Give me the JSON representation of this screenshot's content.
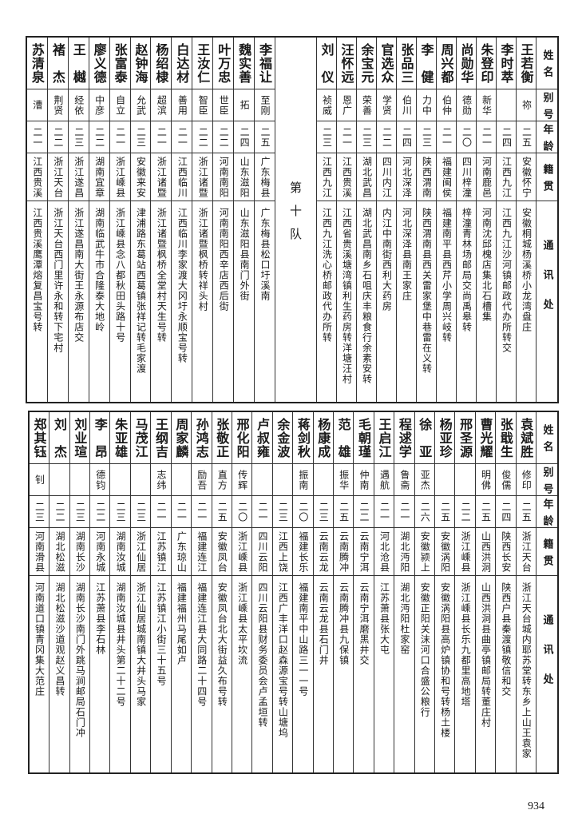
{
  "headers": [
    "姓名",
    "别号",
    "年龄",
    "籍贯",
    "通讯处"
  ],
  "top_table": {
    "right_group": [
      [
        "王若衡",
        "祢",
        "二五",
        "安徽怀宁",
        "安徽桐城杨溪桥小龙湾盘庄"
      ],
      [
        "李时萃",
        "",
        "二四",
        "江西九江",
        "江西九江沙河镇邮政代办所转交"
      ],
      [
        "朱登印",
        "新华",
        "二一",
        "河南鹿邑",
        "河南沈邱槐店集北石槽集"
      ],
      [
        "尚勋华",
        "德勋",
        "二〇",
        "四川梓潼",
        "梓潼青林场邮局交尚禹皋转"
      ],
      [
        "周兴都",
        "伯仲",
        "二一",
        "福建闽侯",
        "福建南平县西芹小学周兴岐转"
      ],
      [
        "李健",
        "力中",
        "二三",
        "陕西渭南",
        "陕西渭南县西关雷家堡中巷雷在义转"
      ],
      [
        "张品三",
        "伯川",
        "二四",
        "河北深泽",
        "河北深泽县南王家庄"
      ],
      [
        "官选众",
        "学贤",
        "二二",
        "四川内江",
        "内江中南街西利大药房"
      ],
      [
        "余宝元",
        "荣善",
        "二三",
        "湖北武昌",
        "湖北武昌南乡石咀庆丰粮食行余素安转"
      ],
      [
        "汪怀远",
        "恩广",
        "二一",
        "江西贵溪",
        "江西省贵溪塘湾镇利生药房转洋塘汪村"
      ],
      [
        "刘仪",
        "祯威",
        "二三",
        "江西九江",
        "江西九江洗心桥邮政代办所转"
      ]
    ],
    "divider": "第十队",
    "left_group": [
      [
        "李福让",
        "至刚",
        "二五",
        "广东梅县",
        "广东梅县松口圩溪南"
      ],
      [
        "魏实善",
        "拓",
        "二四",
        "山东滋阳",
        "山东滋阳县南门外街"
      ],
      [
        "叶万忠",
        "世臣",
        "二二",
        "河南南阳",
        "河南南阳西辛店西后街"
      ],
      [
        "王汝仁",
        "智臣",
        "二二",
        "浙江诸暨",
        "浙江诸暨枫桥转祥头村"
      ],
      [
        "白达材",
        "善用",
        "二一",
        "江西临川",
        "江西临川李家渡大冈圩永顺宝号转"
      ],
      [
        "杨绍棣",
        "超滨",
        "二一",
        "浙江诸暨",
        "浙江诸暨枫桥全堂村天生号转"
      ],
      [
        "赵钟海",
        "允武",
        "二三",
        "安徽来安",
        "津浦路东葛站西葛镇张祥记转毛家渡"
      ],
      [
        "张富泰",
        "自立",
        "二一",
        "浙江嵊县",
        "浙江嵊县念八都秋田头路十号"
      ],
      [
        "廖义德",
        "中彦",
        "二二",
        "湖南宜章",
        "湖南临武牛市合隆泰大地岭"
      ],
      [
        "王樾",
        "经依",
        "二三",
        "浙江遂昌",
        "浙江遂昌南大街王永源布店交"
      ],
      [
        "褚杰",
        "荆贤",
        "二二",
        "浙江天台",
        "浙江天台西门里许永和转下宅村"
      ],
      [
        "苏清泉",
        "漕",
        "二一",
        "江西贵溪",
        "江西贵溪鹰潭熔复昌宝号转"
      ]
    ]
  },
  "bottom_table": {
    "rows": [
      [
        "袁斌胜",
        "修印",
        "二五",
        "浙江天台",
        "浙江天台城内耶苏堂转东乡上山王袁家"
      ],
      [
        "张戢生",
        "俊儒",
        "二四",
        "陕西长安",
        "陕西户县秦渡镇敬信和交"
      ],
      [
        "曹光耀",
        "明佛",
        "二五",
        "山西洪洞",
        "山西洪洞县曲亭镇邮局转董庄村"
      ],
      [
        "邢圣源",
        "",
        "二二",
        "浙江嵊县",
        "浙江嵊县长乐九都里高地塔"
      ],
      [
        "杨亚珍",
        "",
        "二五",
        "安徽涡阳",
        "安徽涡阳县高炉镇协和号转杨土楼"
      ],
      [
        "徐亚",
        "亚杰",
        "二六",
        "安徽颍上",
        "安徽正阳关沫河口合盛公粮行"
      ],
      [
        "程逑学",
        "鲁斋",
        "二一",
        "湖北沔阳",
        "湖北沔阳杜家窑"
      ],
      [
        "王启江",
        "遇航",
        "二一",
        "河北沧县",
        "江苏萧县张大屯"
      ],
      [
        "毛朝瑾",
        "仲南",
        "二二",
        "云南宁洱",
        "云南宁洱磨黑井交"
      ],
      [
        "范雄",
        "振华",
        "二五",
        "云南腾冲",
        "云南腾冲县九保镇"
      ],
      [
        "杨康成",
        "",
        "二三",
        "云南云龙",
        "云南云龙县石门井"
      ],
      [
        "蒋剑秋",
        "振南",
        "二〇",
        "福建长乐",
        "福建南平中山路三一一号"
      ],
      [
        "余金波",
        "",
        "二三",
        "江西上饶",
        "江西广丰洋口赵森源宝号转山塘坞"
      ],
      [
        "卢叔雍",
        "",
        "二一",
        "四川云阳",
        "四川云阳县财务委员会卢孟垣转"
      ],
      [
        "邢化阳",
        "传辉",
        "二〇",
        "浙江嵊县",
        "浙江嵊县太平坎流"
      ],
      [
        "张敬正",
        "直方",
        "二五",
        "安徽凤台",
        "安徽凤台北大街益久布号转"
      ],
      [
        "孙鸿志",
        "励吾",
        "二一",
        "福建连江",
        "福建连江县大同路二十四号"
      ],
      [
        "周家麟",
        "",
        "二一",
        "广东琼山",
        "福建福州马尾如卢"
      ],
      [
        "王纲吉",
        "志纬",
        "二一",
        "江苏镇江",
        "江苏镇江小街三十五号"
      ],
      [
        "马茂江",
        "",
        "二三",
        "浙江仙居",
        "浙江仙居城南镇大井头马家"
      ],
      [
        "朱亚雄",
        "",
        "二三",
        "湖南汝城",
        "湖南汝城县井头第二十二号"
      ],
      [
        "李昂",
        "德钧",
        "二二",
        "河南永城",
        "江苏萧县李石林"
      ],
      [
        "刘业瑄",
        "",
        "二三",
        "湖南长沙",
        "湖南长沙南门外跳马涧邮局石门冲"
      ],
      [
        "刘杰",
        "",
        "二二",
        "湖北松滋",
        "湖北松滋沙道观赵义昌转"
      ],
      [
        "郑其钰",
        "钊",
        "二三",
        "河南滑县",
        "河南道口镇青冈集大范庄"
      ]
    ]
  },
  "page_number": "934"
}
